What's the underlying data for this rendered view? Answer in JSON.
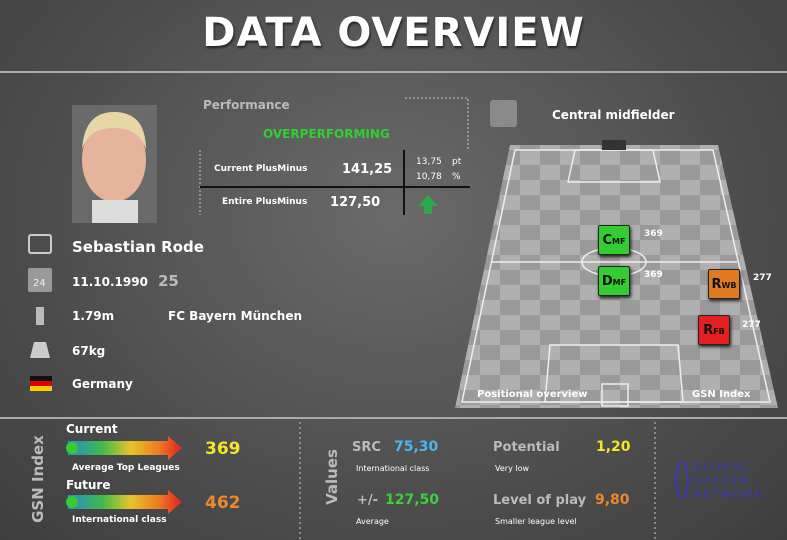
{
  "header": {
    "title": "DATA OVERVIEW"
  },
  "performance": {
    "label": "Performance",
    "status": "OVERPERFORMING",
    "current_label": "Current PlusMinus",
    "current_value": "141,25",
    "delta_pt": "13,75",
    "delta_pt_unit": "pt",
    "delta_pct": "10,78",
    "delta_pct_unit": "%",
    "entire_label": "Entire PlusMinus",
    "entire_value": "127,50"
  },
  "player": {
    "name": "Sebastian Rode",
    "calendar_day": 24,
    "birthdate": "11.10.1990",
    "age": 25,
    "height": "1.79m",
    "club": "FC Bayern München",
    "weight": "67kg",
    "nationality": "Germany"
  },
  "position": {
    "title": "Central midfielder",
    "positions": [
      {
        "label": "CMF",
        "value": 369
      },
      {
        "label": "DMF",
        "value": 369
      },
      {
        "label": "RWB",
        "value": 277
      },
      {
        "label": "RFB",
        "value": 277
      }
    ],
    "footer_left": "Positional overview",
    "footer_right": "GSN Index"
  },
  "gsn_index": {
    "title": "GSN Index",
    "current": {
      "label": "Current",
      "value": 369,
      "class": "Average Top Leagues"
    },
    "future": {
      "label": "Future",
      "value": 462,
      "class": "International class"
    }
  },
  "values": {
    "title": "Values",
    "src": {
      "label": "SRC",
      "value": "75,30",
      "note": "International class"
    },
    "plusminus": {
      "label": "+/-",
      "value": "127,50",
      "note": "Average"
    },
    "potential": {
      "label": "Potential",
      "value": "1,20",
      "note": "Very low"
    },
    "level": {
      "label": "Level of play",
      "value": "9,80",
      "note": "Smaller league level"
    }
  },
  "logo": {
    "lines": [
      "GLOBAL",
      "SOCCER",
      "NETWORK"
    ]
  }
}
